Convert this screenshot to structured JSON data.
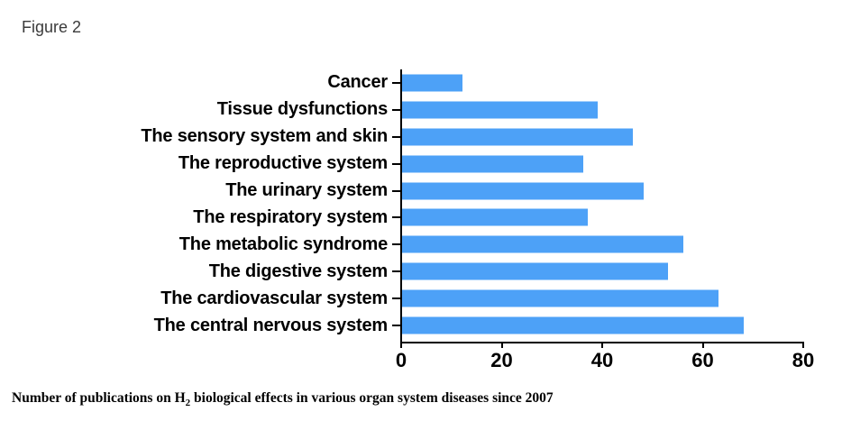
{
  "figure_label": "Figure 2",
  "chart_data": {
    "type": "bar",
    "orientation": "horizontal",
    "categories": [
      "Cancer",
      "Tissue dysfunctions",
      "The sensory system and skin",
      "The reproductive system",
      "The urinary system",
      "The respiratory system",
      "The metabolic syndrome",
      "The digestive system",
      "The cardiovascular system",
      "The central nervous system"
    ],
    "values": [
      12,
      39,
      46,
      36,
      48,
      37,
      56,
      53,
      63,
      68
    ],
    "xlim": [
      0,
      80
    ],
    "x_ticks": [
      0,
      20,
      40,
      60,
      80
    ],
    "xlabel": "",
    "ylabel": "",
    "title": "",
    "grid": false,
    "legend": false,
    "bar_color": "#4da1f7",
    "axis_color": "#000000"
  },
  "caption": {
    "text_before_sub": "Number of publications on H",
    "sub": "2",
    "text_after_sub": " biological effects in various organ system diseases since 2007"
  }
}
